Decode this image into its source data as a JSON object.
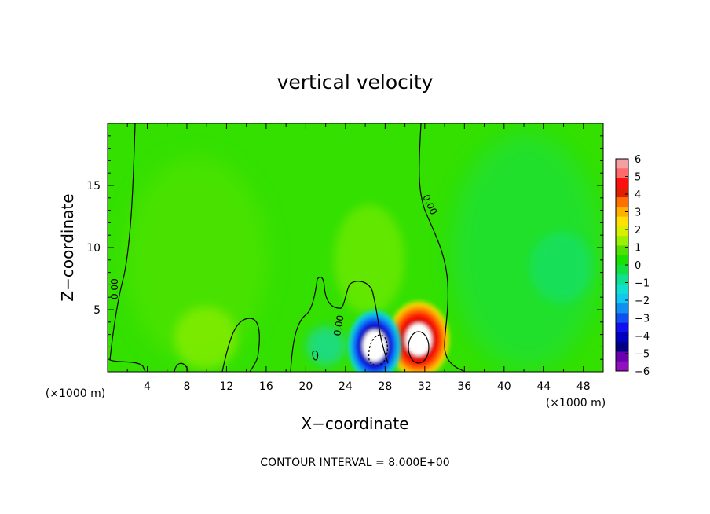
{
  "chart_data": {
    "type": "heatmap",
    "title": "vertical velocity",
    "xlabel": "X−coordinate",
    "ylabel": "Z−coordinate",
    "x_unit_left": "(×1000 m)",
    "x_unit_right": "(×1000 m)",
    "xlim": [
      0,
      50
    ],
    "ylim": [
      0,
      20
    ],
    "x_ticks": [
      {
        "value": 4,
        "label": "4"
      },
      {
        "value": 8,
        "label": "8"
      },
      {
        "value": 12,
        "label": "12"
      },
      {
        "value": 16,
        "label": "16"
      },
      {
        "value": 20,
        "label": "20"
      },
      {
        "value": 24,
        "label": "24"
      },
      {
        "value": 28,
        "label": "28"
      },
      {
        "value": 32,
        "label": "32"
      },
      {
        "value": 36,
        "label": "36"
      },
      {
        "value": 40,
        "label": "40"
      },
      {
        "value": 44,
        "label": "44"
      },
      {
        "value": 48,
        "label": "48"
      }
    ],
    "y_ticks": [
      {
        "value": 5,
        "label": "5"
      },
      {
        "value": 10,
        "label": "10"
      },
      {
        "value": 15,
        "label": "15"
      }
    ],
    "colorbar": {
      "range": [
        -6,
        6
      ],
      "ticks": [
        "6",
        "5",
        "4",
        "3",
        "2",
        "1",
        "0",
        "−1",
        "−2",
        "−3",
        "−4",
        "−5",
        "−6"
      ],
      "colors": [
        "#f4a0a0",
        "#ff6a6a",
        "#ff1010",
        "#e02000",
        "#ff7000",
        "#ffb000",
        "#ffe000",
        "#d8f000",
        "#9af000",
        "#52e000",
        "#18e000",
        "#10e040",
        "#10e090",
        "#10e0d0",
        "#10c8f0",
        "#1090f0",
        "#1050f0",
        "#1010f0",
        "#0000c0",
        "#000080",
        "#6a00b0",
        "#9010c0"
      ]
    },
    "features": [
      {
        "name": "updraft-core",
        "x": 31.3,
        "z": 2.2,
        "value": "max"
      },
      {
        "name": "downdraft-core",
        "x": 27.0,
        "z": 1.8,
        "value": "min"
      }
    ],
    "contour_labels": [
      "0.00",
      "0.00",
      "0.00"
    ],
    "grid": false
  },
  "footer": {
    "contour_interval": "CONTOUR INTERVAL = 8.000E+00"
  }
}
